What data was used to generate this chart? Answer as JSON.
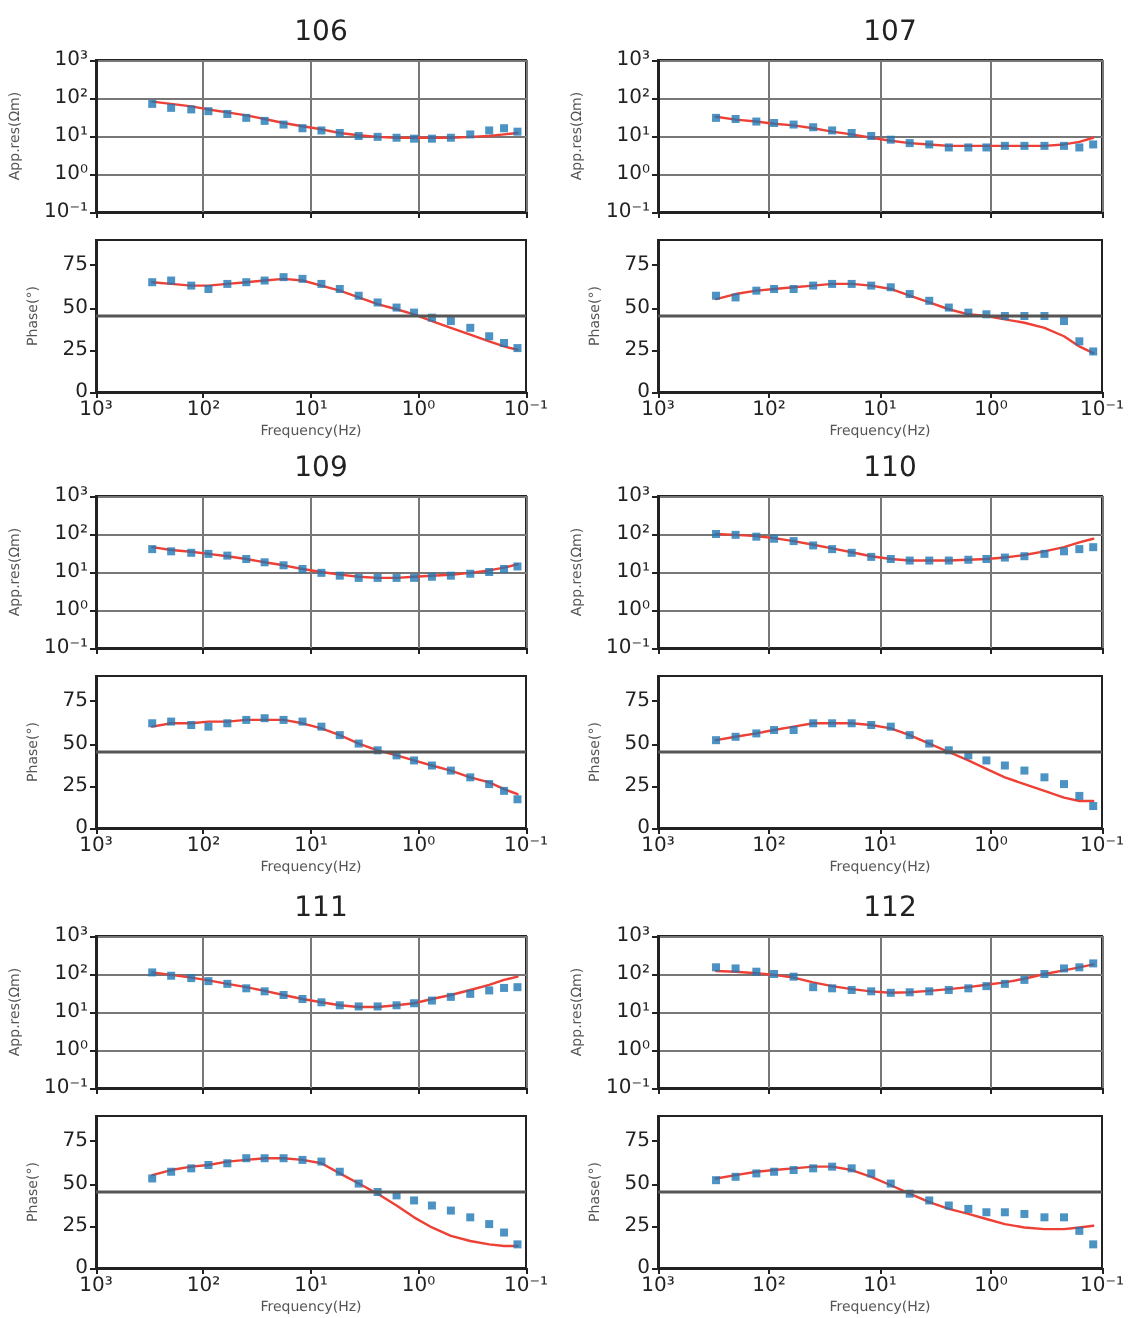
{
  "chart_data": [
    {
      "type": "scatter",
      "title": "106",
      "ylabel": "App.res(Ωm)",
      "log": "xy",
      "grid": true,
      "tick_labels": "y",
      "xlim": [
        1000,
        0.1
      ],
      "xticks": [
        {
          "value": 1000,
          "label": null
        },
        {
          "value": 100,
          "label": null
        },
        {
          "value": 10,
          "label": null
        },
        {
          "value": 1,
          "label": null
        },
        {
          "value": 0.1,
          "label": null
        }
      ],
      "ylim": [
        0.1,
        1000
      ],
      "yticks": [
        {
          "value": 0.1,
          "label": "10⁻¹"
        },
        {
          "value": 1,
          "label": "10⁰"
        },
        {
          "value": 10,
          "label": "10¹"
        },
        {
          "value": 100,
          "label": "10²"
        },
        {
          "value": 1000,
          "label": "10³"
        }
      ],
      "x": [
        300,
        200,
        130,
        90,
        60,
        40,
        27,
        18,
        12,
        8,
        5.4,
        3.6,
        2.4,
        1.6,
        1.1,
        0.75,
        0.5,
        0.33,
        0.22,
        0.16,
        0.12
      ],
      "series": [
        {
          "type": "scatter",
          "marker": "square",
          "color": "#1f77b4",
          "values": [
            70,
            55,
            50,
            45,
            38,
            30,
            25,
            20,
            16,
            14,
            12,
            10,
            9.5,
            9,
            8.5,
            8.5,
            9,
            11,
            14,
            16,
            13
          ]
        },
        {
          "type": "line",
          "color": "#ee4035",
          "values": [
            80,
            70,
            60,
            50,
            42,
            35,
            28,
            22,
            18,
            15,
            12,
            10.5,
            9.5,
            9,
            9,
            9,
            9,
            9.5,
            10,
            11,
            12
          ]
        }
      ]
    },
    {
      "type": "scatter",
      "xlabel": "Frequency(Hz)",
      "ylabel": "Phase(°)",
      "log": "x",
      "grid": false,
      "xlim": [
        1000,
        0.1
      ],
      "xticks": [
        {
          "value": 1000,
          "label": "10³"
        },
        {
          "value": 100,
          "label": "10²"
        },
        {
          "value": 10,
          "label": "10¹"
        },
        {
          "value": 1,
          "label": "10⁰"
        },
        {
          "value": 0.1,
          "label": "10⁻¹"
        }
      ],
      "ylim": [
        0,
        90
      ],
      "yticks": [
        0,
        25,
        50,
        75
      ],
      "ref_lines": [
        {
          "axis": "y",
          "value": 45,
          "color": "#555555"
        }
      ],
      "x": [
        300,
        200,
        130,
        90,
        60,
        40,
        27,
        18,
        12,
        8,
        5.4,
        3.6,
        2.4,
        1.6,
        1.1,
        0.75,
        0.5,
        0.33,
        0.22,
        0.16,
        0.12
      ],
      "series": [
        {
          "type": "scatter",
          "marker": "square",
          "color": "#1f77b4",
          "values": [
            65,
            66,
            63,
            61,
            64,
            65,
            66,
            68,
            67,
            64,
            61,
            57,
            53,
            50,
            47,
            44,
            42,
            38,
            33,
            29,
            26
          ]
        },
        {
          "type": "line",
          "color": "#ee4035",
          "values": [
            65,
            64,
            63,
            63,
            64,
            65,
            66,
            67,
            66,
            63,
            60,
            56,
            52,
            49,
            46,
            42,
            38,
            34,
            30,
            27,
            25
          ]
        }
      ]
    },
    {
      "type": "scatter",
      "title": "107",
      "ylabel": "App.res(Ωm)",
      "log": "xy",
      "grid": true,
      "tick_labels": "y",
      "xlim": [
        1000,
        0.1
      ],
      "xticks": [
        {
          "value": 1000,
          "label": null
        },
        {
          "value": 100,
          "label": null
        },
        {
          "value": 10,
          "label": null
        },
        {
          "value": 1,
          "label": null
        },
        {
          "value": 0.1,
          "label": null
        }
      ],
      "ylim": [
        0.1,
        1000
      ],
      "yticks": [
        {
          "value": 0.1,
          "label": "10⁻¹"
        },
        {
          "value": 1,
          "label": "10⁰"
        },
        {
          "value": 10,
          "label": "10¹"
        },
        {
          "value": 100,
          "label": "10²"
        },
        {
          "value": 1000,
          "label": "10³"
        }
      ],
      "x": [
        300,
        200,
        130,
        90,
        60,
        40,
        27,
        18,
        12,
        8,
        5.4,
        3.6,
        2.4,
        1.6,
        1.1,
        0.75,
        0.5,
        0.33,
        0.22,
        0.16,
        0.12
      ],
      "series": [
        {
          "type": "scatter",
          "marker": "square",
          "color": "#1f77b4",
          "values": [
            30,
            28,
            24,
            22,
            20,
            17,
            14,
            12,
            10,
            8,
            6.5,
            6,
            5,
            5,
            5,
            5.5,
            5.5,
            5.5,
            5.5,
            5,
            6
          ]
        },
        {
          "type": "line",
          "color": "#ee4035",
          "values": [
            32,
            27,
            24,
            21,
            19,
            16,
            13,
            11,
            9,
            7.5,
            6.5,
            6,
            5.5,
            5.5,
            5.5,
            5.5,
            5.5,
            5.5,
            6,
            7,
            9
          ]
        }
      ]
    },
    {
      "type": "scatter",
      "xlabel": "Frequency(Hz)",
      "ylabel": "Phase(°)",
      "log": "x",
      "grid": false,
      "xlim": [
        1000,
        0.1
      ],
      "xticks": [
        {
          "value": 1000,
          "label": "10³"
        },
        {
          "value": 100,
          "label": "10²"
        },
        {
          "value": 10,
          "label": "10¹"
        },
        {
          "value": 1,
          "label": "10⁰"
        },
        {
          "value": 0.1,
          "label": "10⁻¹"
        }
      ],
      "ylim": [
        0,
        90
      ],
      "yticks": [
        0,
        25,
        50,
        75
      ],
      "ref_lines": [
        {
          "axis": "y",
          "value": 45,
          "color": "#555555"
        }
      ],
      "x": [
        300,
        200,
        130,
        90,
        60,
        40,
        27,
        18,
        12,
        8,
        5.4,
        3.6,
        2.4,
        1.6,
        1.1,
        0.75,
        0.5,
        0.33,
        0.22,
        0.16,
        0.12
      ],
      "series": [
        {
          "type": "scatter",
          "marker": "square",
          "color": "#1f77b4",
          "values": [
            57,
            56,
            60,
            61,
            61,
            63,
            64,
            64,
            63,
            62,
            58,
            54,
            50,
            47,
            46,
            45,
            45,
            45,
            42,
            30,
            24
          ]
        },
        {
          "type": "line",
          "color": "#ee4035",
          "values": [
            55,
            58,
            60,
            61,
            62,
            63,
            64,
            64,
            63,
            61,
            57,
            53,
            49,
            46,
            45,
            43,
            41,
            38,
            33,
            27,
            23
          ]
        }
      ]
    },
    {
      "type": "scatter",
      "title": "109",
      "ylabel": "App.res(Ωm)",
      "log": "xy",
      "grid": true,
      "tick_labels": "y",
      "xlim": [
        1000,
        0.1
      ],
      "xticks": [
        {
          "value": 1000,
          "label": null
        },
        {
          "value": 100,
          "label": null
        },
        {
          "value": 10,
          "label": null
        },
        {
          "value": 1,
          "label": null
        },
        {
          "value": 0.1,
          "label": null
        }
      ],
      "ylim": [
        0.1,
        1000
      ],
      "yticks": [
        {
          "value": 0.1,
          "label": "10⁻¹"
        },
        {
          "value": 1,
          "label": "10⁰"
        },
        {
          "value": 10,
          "label": "10¹"
        },
        {
          "value": 100,
          "label": "10²"
        },
        {
          "value": 1000,
          "label": "10³"
        }
      ],
      "x": [
        300,
        200,
        130,
        90,
        60,
        40,
        27,
        18,
        12,
        8,
        5.4,
        3.6,
        2.4,
        1.6,
        1.1,
        0.75,
        0.5,
        0.33,
        0.22,
        0.16,
        0.12
      ],
      "series": [
        {
          "type": "scatter",
          "marker": "square",
          "color": "#1f77b4",
          "values": [
            40,
            35,
            32,
            30,
            27,
            22,
            18,
            15,
            12,
            9.5,
            8,
            7,
            7,
            7,
            7,
            7.5,
            8,
            9,
            10,
            12,
            14
          ]
        },
        {
          "type": "line",
          "color": "#ee4035",
          "values": [
            45,
            38,
            34,
            30,
            26,
            22,
            18,
            15,
            12,
            10,
            8.5,
            7.5,
            7,
            7,
            7.5,
            8,
            8.5,
            9.5,
            11,
            13,
            16
          ]
        }
      ]
    },
    {
      "type": "scatter",
      "xlabel": "Frequency(Hz)",
      "ylabel": "Phase(°)",
      "log": "x",
      "grid": false,
      "xlim": [
        1000,
        0.1
      ],
      "xticks": [
        {
          "value": 1000,
          "label": "10³"
        },
        {
          "value": 100,
          "label": "10²"
        },
        {
          "value": 10,
          "label": "10¹"
        },
        {
          "value": 1,
          "label": "10⁰"
        },
        {
          "value": 0.1,
          "label": "10⁻¹"
        }
      ],
      "ylim": [
        0,
        90
      ],
      "yticks": [
        0,
        25,
        50,
        75
      ],
      "ref_lines": [
        {
          "axis": "y",
          "value": 45,
          "color": "#555555"
        }
      ],
      "x": [
        300,
        200,
        130,
        90,
        60,
        40,
        27,
        18,
        12,
        8,
        5.4,
        3.6,
        2.4,
        1.6,
        1.1,
        0.75,
        0.5,
        0.33,
        0.22,
        0.16,
        0.12
      ],
      "series": [
        {
          "type": "scatter",
          "marker": "square",
          "color": "#1f77b4",
          "values": [
            62,
            63,
            61,
            60,
            62,
            64,
            65,
            64,
            63,
            60,
            55,
            50,
            46,
            43,
            40,
            37,
            34,
            30,
            26,
            22,
            17
          ]
        },
        {
          "type": "line",
          "color": "#ee4035",
          "values": [
            60,
            62,
            62,
            63,
            63,
            64,
            64,
            64,
            62,
            59,
            55,
            50,
            46,
            43,
            40,
            37,
            34,
            30,
            27,
            23,
            20
          ]
        }
      ]
    },
    {
      "type": "scatter",
      "title": "110",
      "ylabel": "App.res(Ωm)",
      "log": "xy",
      "grid": true,
      "tick_labels": "y",
      "xlim": [
        1000,
        0.1
      ],
      "xticks": [
        {
          "value": 1000,
          "label": null
        },
        {
          "value": 100,
          "label": null
        },
        {
          "value": 10,
          "label": null
        },
        {
          "value": 1,
          "label": null
        },
        {
          "value": 0.1,
          "label": null
        }
      ],
      "ylim": [
        0.1,
        1000
      ],
      "yticks": [
        {
          "value": 0.1,
          "label": "10⁻¹"
        },
        {
          "value": 1,
          "label": "10⁰"
        },
        {
          "value": 10,
          "label": "10¹"
        },
        {
          "value": 100,
          "label": "10²"
        },
        {
          "value": 1000,
          "label": "10³"
        }
      ],
      "x": [
        300,
        200,
        130,
        90,
        60,
        40,
        27,
        18,
        12,
        8,
        5.4,
        3.6,
        2.4,
        1.6,
        1.1,
        0.75,
        0.5,
        0.33,
        0.22,
        0.16,
        0.12
      ],
      "series": [
        {
          "type": "scatter",
          "marker": "square",
          "color": "#1f77b4",
          "values": [
            100,
            95,
            85,
            75,
            65,
            50,
            40,
            32,
            25,
            22,
            20,
            20,
            20,
            21,
            22,
            24,
            26,
            30,
            35,
            40,
            45
          ]
        },
        {
          "type": "line",
          "color": "#ee4035",
          "values": [
            100,
            95,
            88,
            78,
            65,
            52,
            42,
            33,
            26,
            22,
            20,
            20,
            20,
            21,
            22,
            24,
            28,
            35,
            45,
            60,
            75
          ]
        }
      ]
    },
    {
      "type": "scatter",
      "xlabel": "Frequency(Hz)",
      "ylabel": "Phase(°)",
      "log": "x",
      "grid": false,
      "xlim": [
        1000,
        0.1
      ],
      "xticks": [
        {
          "value": 1000,
          "label": "10³"
        },
        {
          "value": 100,
          "label": "10²"
        },
        {
          "value": 10,
          "label": "10¹"
        },
        {
          "value": 1,
          "label": "10⁰"
        },
        {
          "value": 0.1,
          "label": "10⁻¹"
        }
      ],
      "ylim": [
        0,
        90
      ],
      "yticks": [
        0,
        25,
        50,
        75
      ],
      "ref_lines": [
        {
          "axis": "y",
          "value": 45,
          "color": "#555555"
        }
      ],
      "x": [
        300,
        200,
        130,
        90,
        60,
        40,
        27,
        18,
        12,
        8,
        5.4,
        3.6,
        2.4,
        1.6,
        1.1,
        0.75,
        0.5,
        0.33,
        0.22,
        0.16,
        0.12
      ],
      "series": [
        {
          "type": "scatter",
          "marker": "square",
          "color": "#1f77b4",
          "values": [
            52,
            54,
            56,
            58,
            58,
            62,
            62,
            62,
            61,
            60,
            55,
            50,
            46,
            43,
            40,
            37,
            34,
            30,
            26,
            19,
            13
          ]
        },
        {
          "type": "line",
          "color": "#ee4035",
          "values": [
            52,
            54,
            56,
            58,
            60,
            62,
            62,
            62,
            61,
            59,
            55,
            50,
            45,
            40,
            35,
            30,
            26,
            22,
            18,
            16,
            16
          ]
        }
      ]
    },
    {
      "type": "scatter",
      "title": "111",
      "ylabel": "App.res(Ωm)",
      "log": "xy",
      "grid": true,
      "tick_labels": "y",
      "xlim": [
        1000,
        0.1
      ],
      "xticks": [
        {
          "value": 1000,
          "label": null
        },
        {
          "value": 100,
          "label": null
        },
        {
          "value": 10,
          "label": null
        },
        {
          "value": 1,
          "label": null
        },
        {
          "value": 0.1,
          "label": null
        }
      ],
      "ylim": [
        0.1,
        1000
      ],
      "yticks": [
        {
          "value": 0.1,
          "label": "10⁻¹"
        },
        {
          "value": 1,
          "label": "10⁰"
        },
        {
          "value": 10,
          "label": "10¹"
        },
        {
          "value": 100,
          "label": "10²"
        },
        {
          "value": 1000,
          "label": "10³"
        }
      ],
      "x": [
        300,
        200,
        130,
        90,
        60,
        40,
        27,
        18,
        12,
        8,
        5.4,
        3.6,
        2.4,
        1.6,
        1.1,
        0.75,
        0.5,
        0.33,
        0.22,
        0.16,
        0.12
      ],
      "series": [
        {
          "type": "scatter",
          "marker": "square",
          "color": "#1f77b4",
          "values": [
            110,
            90,
            78,
            65,
            55,
            42,
            35,
            28,
            22,
            18,
            15,
            14,
            14,
            15,
            17,
            20,
            25,
            30,
            37,
            43,
            45
          ]
        },
        {
          "type": "line",
          "color": "#ee4035",
          "values": [
            110,
            95,
            80,
            68,
            55,
            45,
            36,
            28,
            22,
            18,
            15,
            13.5,
            13.5,
            15,
            17,
            22,
            28,
            38,
            52,
            70,
            85
          ]
        }
      ]
    },
    {
      "type": "scatter",
      "xlabel": "Frequency(Hz)",
      "ylabel": "Phase(°)",
      "log": "x",
      "grid": false,
      "xlim": [
        1000,
        0.1
      ],
      "xticks": [
        {
          "value": 1000,
          "label": "10³"
        },
        {
          "value": 100,
          "label": "10²"
        },
        {
          "value": 10,
          "label": "10¹"
        },
        {
          "value": 1,
          "label": "10⁰"
        },
        {
          "value": 0.1,
          "label": "10⁻¹"
        }
      ],
      "ylim": [
        0,
        90
      ],
      "yticks": [
        0,
        25,
        50,
        75
      ],
      "ref_lines": [
        {
          "axis": "y",
          "value": 45,
          "color": "#555555"
        }
      ],
      "x": [
        300,
        200,
        130,
        90,
        60,
        40,
        27,
        18,
        12,
        8,
        5.4,
        3.6,
        2.4,
        1.6,
        1.1,
        0.75,
        0.5,
        0.33,
        0.22,
        0.16,
        0.12
      ],
      "series": [
        {
          "type": "scatter",
          "marker": "square",
          "color": "#1f77b4",
          "values": [
            53,
            57,
            59,
            61,
            62,
            65,
            65,
            65,
            64,
            63,
            57,
            50,
            45,
            43,
            40,
            37,
            34,
            30,
            26,
            21,
            14
          ]
        },
        {
          "type": "line",
          "color": "#ee4035",
          "values": [
            55,
            58,
            60,
            61,
            63,
            64,
            65,
            65,
            64,
            62,
            56,
            50,
            44,
            37,
            30,
            24,
            19,
            16,
            14,
            13,
            13
          ]
        }
      ]
    },
    {
      "type": "scatter",
      "title": "112",
      "ylabel": "App.res(Ωm)",
      "log": "xy",
      "grid": true,
      "tick_labels": "y",
      "xlim": [
        1000,
        0.1
      ],
      "xticks": [
        {
          "value": 1000,
          "label": null
        },
        {
          "value": 100,
          "label": null
        },
        {
          "value": 10,
          "label": null
        },
        {
          "value": 1,
          "label": null
        },
        {
          "value": 0.1,
          "label": null
        }
      ],
      "ylim": [
        0.1,
        1000
      ],
      "yticks": [
        {
          "value": 0.1,
          "label": "10⁻¹"
        },
        {
          "value": 1,
          "label": "10⁰"
        },
        {
          "value": 10,
          "label": "10¹"
        },
        {
          "value": 100,
          "label": "10²"
        },
        {
          "value": 1000,
          "label": "10³"
        }
      ],
      "x": [
        300,
        200,
        130,
        90,
        60,
        40,
        27,
        18,
        12,
        8,
        5.4,
        3.6,
        2.4,
        1.6,
        1.1,
        0.75,
        0.5,
        0.33,
        0.22,
        0.16,
        0.12
      ],
      "series": [
        {
          "type": "scatter",
          "marker": "square",
          "color": "#1f77b4",
          "values": [
            150,
            140,
            115,
            100,
            85,
            45,
            42,
            38,
            35,
            32,
            33,
            35,
            38,
            42,
            48,
            55,
            70,
            100,
            140,
            150,
            190
          ]
        },
        {
          "type": "line",
          "color": "#ee4035",
          "values": [
            120,
            115,
            105,
            95,
            80,
            60,
            48,
            40,
            35,
            32,
            33,
            36,
            40,
            45,
            52,
            60,
            75,
            100,
            125,
            150,
            180
          ]
        }
      ]
    },
    {
      "type": "scatter",
      "xlabel": "Frequency(Hz)",
      "ylabel": "Phase(°)",
      "log": "x",
      "grid": false,
      "xlim": [
        1000,
        0.1
      ],
      "xticks": [
        {
          "value": 1000,
          "label": "10³"
        },
        {
          "value": 100,
          "label": "10²"
        },
        {
          "value": 10,
          "label": "10¹"
        },
        {
          "value": 1,
          "label": "10⁰"
        },
        {
          "value": 0.1,
          "label": "10⁻¹"
        }
      ],
      "ylim": [
        0,
        90
      ],
      "yticks": [
        0,
        25,
        50,
        75
      ],
      "ref_lines": [
        {
          "axis": "y",
          "value": 45,
          "color": "#555555"
        }
      ],
      "x": [
        300,
        200,
        130,
        90,
        60,
        40,
        27,
        18,
        12,
        8,
        5.4,
        3.6,
        2.4,
        1.6,
        1.1,
        0.75,
        0.5,
        0.33,
        0.22,
        0.16,
        0.12
      ],
      "series": [
        {
          "type": "scatter",
          "marker": "square",
          "color": "#1f77b4",
          "values": [
            52,
            54,
            56,
            57,
            58,
            59,
            60,
            59,
            56,
            50,
            44,
            40,
            37,
            35,
            33,
            33,
            32,
            30,
            30,
            22,
            14
          ]
        },
        {
          "type": "line",
          "color": "#ee4035",
          "values": [
            53,
            55,
            57,
            58,
            59,
            60,
            60,
            58,
            54,
            49,
            44,
            39,
            35,
            32,
            29,
            26,
            24,
            23,
            23,
            24,
            25
          ]
        }
      ]
    }
  ]
}
